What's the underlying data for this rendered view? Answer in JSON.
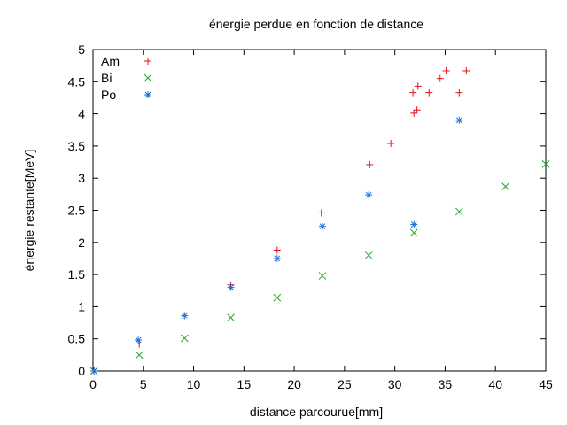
{
  "chart_data": {
    "type": "scatter",
    "title": "énergie perdue en fonction de distance",
    "xlabel": "distance parcourue[mm]",
    "ylabel": "énergie restante[MeV]",
    "xlim": [
      0,
      45
    ],
    "ylim": [
      0,
      5
    ],
    "xticks": [
      0,
      5,
      10,
      15,
      20,
      25,
      30,
      35,
      40,
      45
    ],
    "yticks": [
      0,
      0.5,
      1,
      1.5,
      2,
      2.5,
      3,
      3.5,
      4,
      4.5,
      5
    ],
    "grid": false,
    "legend_position": "top-left",
    "series": [
      {
        "name": "Am",
        "marker": "plus",
        "color": "#e0101a",
        "points": [
          [
            0.1,
            0
          ],
          [
            4.6,
            0.42
          ],
          [
            13.7,
            1.34
          ],
          [
            18.3,
            1.88
          ],
          [
            22.7,
            2.46
          ],
          [
            27.5,
            3.21
          ],
          [
            29.6,
            3.54
          ],
          [
            31.8,
            4.33
          ],
          [
            31.9,
            4.01
          ],
          [
            32.2,
            4.06
          ],
          [
            32.3,
            4.43
          ],
          [
            33.4,
            4.33
          ],
          [
            34.5,
            4.55
          ],
          [
            35.1,
            4.67
          ],
          [
            36.4,
            4.33
          ],
          [
            37.1,
            4.67
          ]
        ]
      },
      {
        "name": "Bi",
        "marker": "cross",
        "color": "#22a82b",
        "points": [
          [
            0.1,
            0
          ],
          [
            4.6,
            0.25
          ],
          [
            9.1,
            0.51
          ],
          [
            13.7,
            0.83
          ],
          [
            18.3,
            1.14
          ],
          [
            22.8,
            1.48
          ],
          [
            27.4,
            1.8
          ],
          [
            31.9,
            2.15
          ],
          [
            36.4,
            2.48
          ],
          [
            41.0,
            2.87
          ],
          [
            45.0,
            3.22
          ]
        ]
      },
      {
        "name": "Po",
        "marker": "star",
        "color": "#1f6fd6",
        "points": [
          [
            0.1,
            0
          ],
          [
            4.5,
            0.48
          ],
          [
            9.1,
            0.86
          ],
          [
            13.7,
            1.3
          ],
          [
            18.3,
            1.75
          ],
          [
            22.8,
            2.25
          ],
          [
            27.4,
            2.74
          ],
          [
            31.9,
            2.28
          ],
          [
            36.4,
            3.9
          ]
        ]
      }
    ]
  }
}
